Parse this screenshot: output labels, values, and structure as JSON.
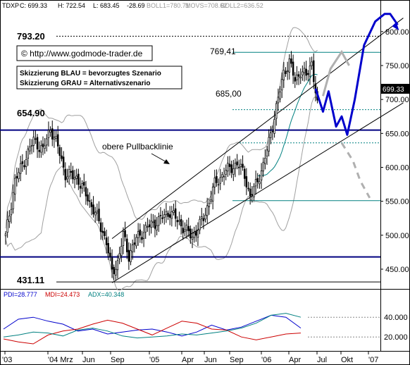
{
  "header": {
    "ticker": "TDXP",
    "close": "C: 699.33",
    "high": "H: 722.54",
    "low": "L: 683.45",
    "change": "-28.69",
    "boll1": "BOLL1=780.71",
    "movs": "MOVS=708.62",
    "boll2": "BOLL2=636.52"
  },
  "annotations": {
    "url": "© http://www.godmode-trader.de",
    "blue_note": "Skizzierung BLAU = bevorzugtes Szenario",
    "gray_note": "Skizzierung GRAU = Alternativszenario",
    "pullback": "obere Pullbacklinie"
  },
  "levels": {
    "l793": "793.20",
    "l769": "769,41",
    "l685": "685,00",
    "l654": "654.90",
    "l431": "431.11",
    "last_price": "699.33"
  },
  "indicator": {
    "pdi": "PDI=28.777",
    "mdi": "MDI=24.473",
    "adx": "ADX=40.348",
    "ticks": [
      "20.000",
      "40.000"
    ]
  },
  "colors": {
    "candle": "#000000",
    "bollinger": "#a0a0a0",
    "sma": "#008080",
    "scenario_blue": "#0000cc",
    "scenario_gray": "#b0b0b0",
    "pdi": "#0000cc",
    "mdi": "#cc0000",
    "adx": "#008080"
  },
  "chart_data": [
    {
      "type": "candlestick",
      "title": "",
      "x_labels": [
        "'03",
        "'04 Mrz",
        "Jun",
        "Sep",
        "'05",
        "Apr",
        "Jun",
        "Sep",
        "'06",
        "Apr",
        "Jul",
        "Okt",
        "'07"
      ],
      "y_ticks": [
        450,
        500,
        550,
        600,
        650,
        700,
        750,
        800
      ],
      "ylim": [
        423,
        832
      ],
      "grid": false,
      "price_series": {
        "anchors": [
          {
            "i": 0,
            "v": 498
          },
          {
            "i": 5,
            "v": 580
          },
          {
            "i": 10,
            "v": 610
          },
          {
            "i": 15,
            "v": 640
          },
          {
            "i": 20,
            "v": 625
          },
          {
            "i": 24,
            "v": 658
          },
          {
            "i": 28,
            "v": 630
          },
          {
            "i": 32,
            "v": 590
          },
          {
            "i": 38,
            "v": 585
          },
          {
            "i": 44,
            "v": 555
          },
          {
            "i": 50,
            "v": 520
          },
          {
            "i": 54,
            "v": 490
          },
          {
            "i": 57,
            "v": 445
          },
          {
            "i": 60,
            "v": 460
          },
          {
            "i": 63,
            "v": 500
          },
          {
            "i": 66,
            "v": 470
          },
          {
            "i": 70,
            "v": 495
          },
          {
            "i": 76,
            "v": 512
          },
          {
            "i": 82,
            "v": 522
          },
          {
            "i": 88,
            "v": 535
          },
          {
            "i": 94,
            "v": 515
          },
          {
            "i": 100,
            "v": 497
          },
          {
            "i": 106,
            "v": 525
          },
          {
            "i": 112,
            "v": 575
          },
          {
            "i": 118,
            "v": 595
          },
          {
            "i": 124,
            "v": 605
          },
          {
            "i": 128,
            "v": 590
          },
          {
            "i": 131,
            "v": 555
          },
          {
            "i": 134,
            "v": 575
          },
          {
            "i": 138,
            "v": 602
          },
          {
            "i": 142,
            "v": 650
          },
          {
            "i": 146,
            "v": 700
          },
          {
            "i": 149,
            "v": 740
          },
          {
            "i": 152,
            "v": 755
          },
          {
            "i": 155,
            "v": 728
          },
          {
            "i": 158,
            "v": 742
          },
          {
            "i": 161,
            "v": 734
          },
          {
            "i": 164,
            "v": 755
          },
          {
            "i": 166,
            "v": 712
          },
          {
            "i": 167,
            "v": 699
          }
        ]
      },
      "horizontal_levels": [
        793.2,
        769.41,
        685.0,
        654.9,
        636.0,
        551.0,
        468.0,
        431.11
      ],
      "channel": {
        "upper": [
          [
            57,
            495
          ],
          [
            213,
            820
          ]
        ],
        "lower": [
          [
            57,
            430
          ],
          [
            213,
            695
          ]
        ]
      },
      "scenario_blue": [
        [
          166,
          716
        ],
        [
          170,
          682
        ],
        [
          173,
          712
        ],
        [
          177,
          660
        ],
        [
          180,
          675
        ],
        [
          183,
          648
        ],
        [
          187,
          700
        ],
        [
          192,
          780
        ],
        [
          198,
          815
        ],
        [
          203,
          826
        ],
        [
          206,
          826
        ],
        [
          210,
          810
        ]
      ],
      "scenario_gray": [
        [
          170,
          705
        ],
        [
          174,
          745
        ],
        [
          180,
          770
        ],
        [
          184,
          750
        ],
        [
          180,
          636
        ],
        [
          186,
          610
        ],
        [
          190,
          580
        ],
        [
          195,
          555
        ]
      ]
    },
    {
      "type": "line",
      "title": "",
      "series": [
        {
          "name": "PDI",
          "values": [
            28,
            38,
            40,
            36,
            33,
            26,
            28,
            23,
            25,
            27,
            28,
            25,
            21,
            25,
            32,
            27,
            30,
            36,
            42,
            40,
            29
          ]
        },
        {
          "name": "MDI",
          "values": [
            18,
            15,
            13,
            22,
            26,
            28,
            33,
            37,
            34,
            28,
            22,
            29,
            36,
            34,
            28,
            27,
            20,
            17,
            20,
            23,
            24
          ]
        },
        {
          "name": "ADX",
          "values": [
            20,
            22,
            25,
            24,
            21,
            27,
            29,
            26,
            21,
            19,
            20,
            21,
            23,
            22,
            24,
            26,
            29,
            34,
            42,
            44,
            40
          ]
        }
      ],
      "y_ticks": [
        20,
        40
      ],
      "ylim": [
        8,
        58
      ]
    }
  ]
}
